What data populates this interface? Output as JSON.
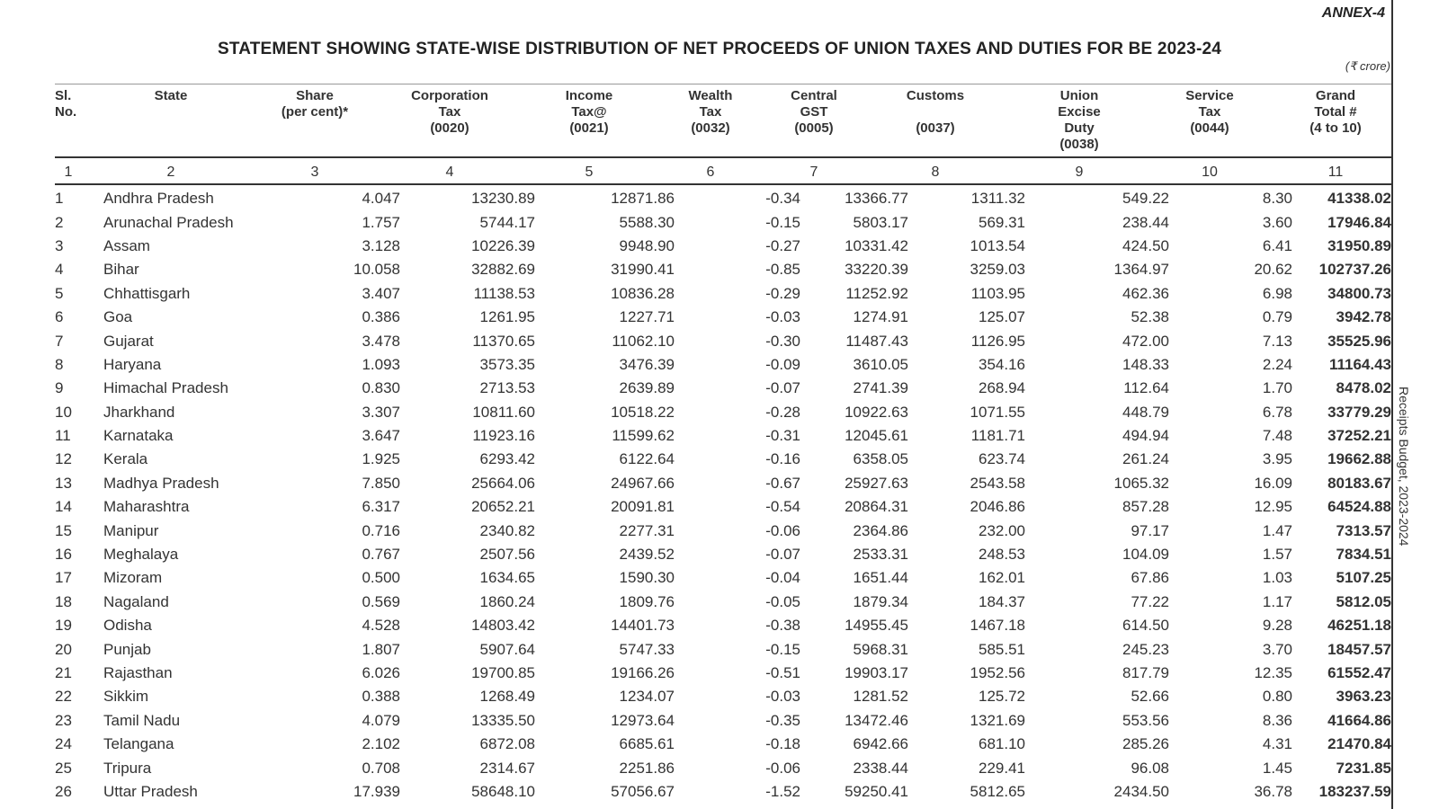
{
  "annex": "ANNEX-4",
  "title": "STATEMENT SHOWING STATE-WISE DISTRIBUTION OF NET PROCEEDS OF UNION TAXES AND DUTIES FOR BE 2023-24",
  "unit": "(₹ crore)",
  "side_note": "Receipts Budget, 2023-2024",
  "headers": {
    "sl_no": "Sl.\nNo.",
    "state": "State",
    "share": "Share\n(per cent)*",
    "corporation_tax": "Corporation\nTax\n(0020)",
    "income_tax": "Income\nTax@\n(0021)",
    "wealth_tax": "Wealth\nTax\n(0032)",
    "central_gst": "Central\nGST\n(0005)",
    "customs": "Customs\n\n(0037)",
    "union_excise": "Union\nExcise\nDuty\n(0038)",
    "service_tax": "Service\nTax\n(0044)",
    "grand_total": "Grand\nTotal #\n(4 to 10)"
  },
  "column_numbers": [
    "1",
    "2",
    "3",
    "4",
    "5",
    "6",
    "7",
    "8",
    "9",
    "10",
    "11"
  ],
  "rows": [
    [
      "1",
      "Andhra Pradesh",
      "4.047",
      "13230.89",
      "12871.86",
      "-0.34",
      "13366.77",
      "1311.32",
      "549.22",
      "8.30",
      "41338.02"
    ],
    [
      "2",
      "Arunachal Pradesh",
      "1.757",
      "5744.17",
      "5588.30",
      "-0.15",
      "5803.17",
      "569.31",
      "238.44",
      "3.60",
      "17946.84"
    ],
    [
      "3",
      "Assam",
      "3.128",
      "10226.39",
      "9948.90",
      "-0.27",
      "10331.42",
      "1013.54",
      "424.50",
      "6.41",
      "31950.89"
    ],
    [
      "4",
      "Bihar",
      "10.058",
      "32882.69",
      "31990.41",
      "-0.85",
      "33220.39",
      "3259.03",
      "1364.97",
      "20.62",
      "102737.26"
    ],
    [
      "5",
      "Chhattisgarh",
      "3.407",
      "11138.53",
      "10836.28",
      "-0.29",
      "11252.92",
      "1103.95",
      "462.36",
      "6.98",
      "34800.73"
    ],
    [
      "6",
      "Goa",
      "0.386",
      "1261.95",
      "1227.71",
      "-0.03",
      "1274.91",
      "125.07",
      "52.38",
      "0.79",
      "3942.78"
    ],
    [
      "7",
      "Gujarat",
      "3.478",
      "11370.65",
      "11062.10",
      "-0.30",
      "11487.43",
      "1126.95",
      "472.00",
      "7.13",
      "35525.96"
    ],
    [
      "8",
      "Haryana",
      "1.093",
      "3573.35",
      "3476.39",
      "-0.09",
      "3610.05",
      "354.16",
      "148.33",
      "2.24",
      "11164.43"
    ],
    [
      "9",
      "Himachal Pradesh",
      "0.830",
      "2713.53",
      "2639.89",
      "-0.07",
      "2741.39",
      "268.94",
      "112.64",
      "1.70",
      "8478.02"
    ],
    [
      "10",
      "Jharkhand",
      "3.307",
      "10811.60",
      "10518.22",
      "-0.28",
      "10922.63",
      "1071.55",
      "448.79",
      "6.78",
      "33779.29"
    ],
    [
      "11",
      "Karnataka",
      "3.647",
      "11923.16",
      "11599.62",
      "-0.31",
      "12045.61",
      "1181.71",
      "494.94",
      "7.48",
      "37252.21"
    ],
    [
      "12",
      "Kerala",
      "1.925",
      "6293.42",
      "6122.64",
      "-0.16",
      "6358.05",
      "623.74",
      "261.24",
      "3.95",
      "19662.88"
    ],
    [
      "13",
      "Madhya Pradesh",
      "7.850",
      "25664.06",
      "24967.66",
      "-0.67",
      "25927.63",
      "2543.58",
      "1065.32",
      "16.09",
      "80183.67"
    ],
    [
      "14",
      "Maharashtra",
      "6.317",
      "20652.21",
      "20091.81",
      "-0.54",
      "20864.31",
      "2046.86",
      "857.28",
      "12.95",
      "64524.88"
    ],
    [
      "15",
      "Manipur",
      "0.716",
      "2340.82",
      "2277.31",
      "-0.06",
      "2364.86",
      "232.00",
      "97.17",
      "1.47",
      "7313.57"
    ],
    [
      "16",
      "Meghalaya",
      "0.767",
      "2507.56",
      "2439.52",
      "-0.07",
      "2533.31",
      "248.53",
      "104.09",
      "1.57",
      "7834.51"
    ],
    [
      "17",
      "Mizoram",
      "0.500",
      "1634.65",
      "1590.30",
      "-0.04",
      "1651.44",
      "162.01",
      "67.86",
      "1.03",
      "5107.25"
    ],
    [
      "18",
      "Nagaland",
      "0.569",
      "1860.24",
      "1809.76",
      "-0.05",
      "1879.34",
      "184.37",
      "77.22",
      "1.17",
      "5812.05"
    ],
    [
      "19",
      "Odisha",
      "4.528",
      "14803.42",
      "14401.73",
      "-0.38",
      "14955.45",
      "1467.18",
      "614.50",
      "9.28",
      "46251.18"
    ],
    [
      "20",
      "Punjab",
      "1.807",
      "5907.64",
      "5747.33",
      "-0.15",
      "5968.31",
      "585.51",
      "245.23",
      "3.70",
      "18457.57"
    ],
    [
      "21",
      "Rajasthan",
      "6.026",
      "19700.85",
      "19166.26",
      "-0.51",
      "19903.17",
      "1952.56",
      "817.79",
      "12.35",
      "61552.47"
    ],
    [
      "22",
      "Sikkim",
      "0.388",
      "1268.49",
      "1234.07",
      "-0.03",
      "1281.52",
      "125.72",
      "52.66",
      "0.80",
      "3963.23"
    ],
    [
      "23",
      "Tamil Nadu",
      "4.079",
      "13335.50",
      "12973.64",
      "-0.35",
      "13472.46",
      "1321.69",
      "553.56",
      "8.36",
      "41664.86"
    ],
    [
      "24",
      "Telangana",
      "2.102",
      "6872.08",
      "6685.61",
      "-0.18",
      "6942.66",
      "681.10",
      "285.26",
      "4.31",
      "21470.84"
    ],
    [
      "25",
      "Tripura",
      "0.708",
      "2314.67",
      "2251.86",
      "-0.06",
      "2338.44",
      "229.41",
      "96.08",
      "1.45",
      "7231.85"
    ],
    [
      "26",
      "Uttar Pradesh",
      "17.939",
      "58648.10",
      "57056.67",
      "-1.52",
      "59250.41",
      "5812.65",
      "2434.50",
      "36.78",
      "183237.59"
    ]
  ]
}
